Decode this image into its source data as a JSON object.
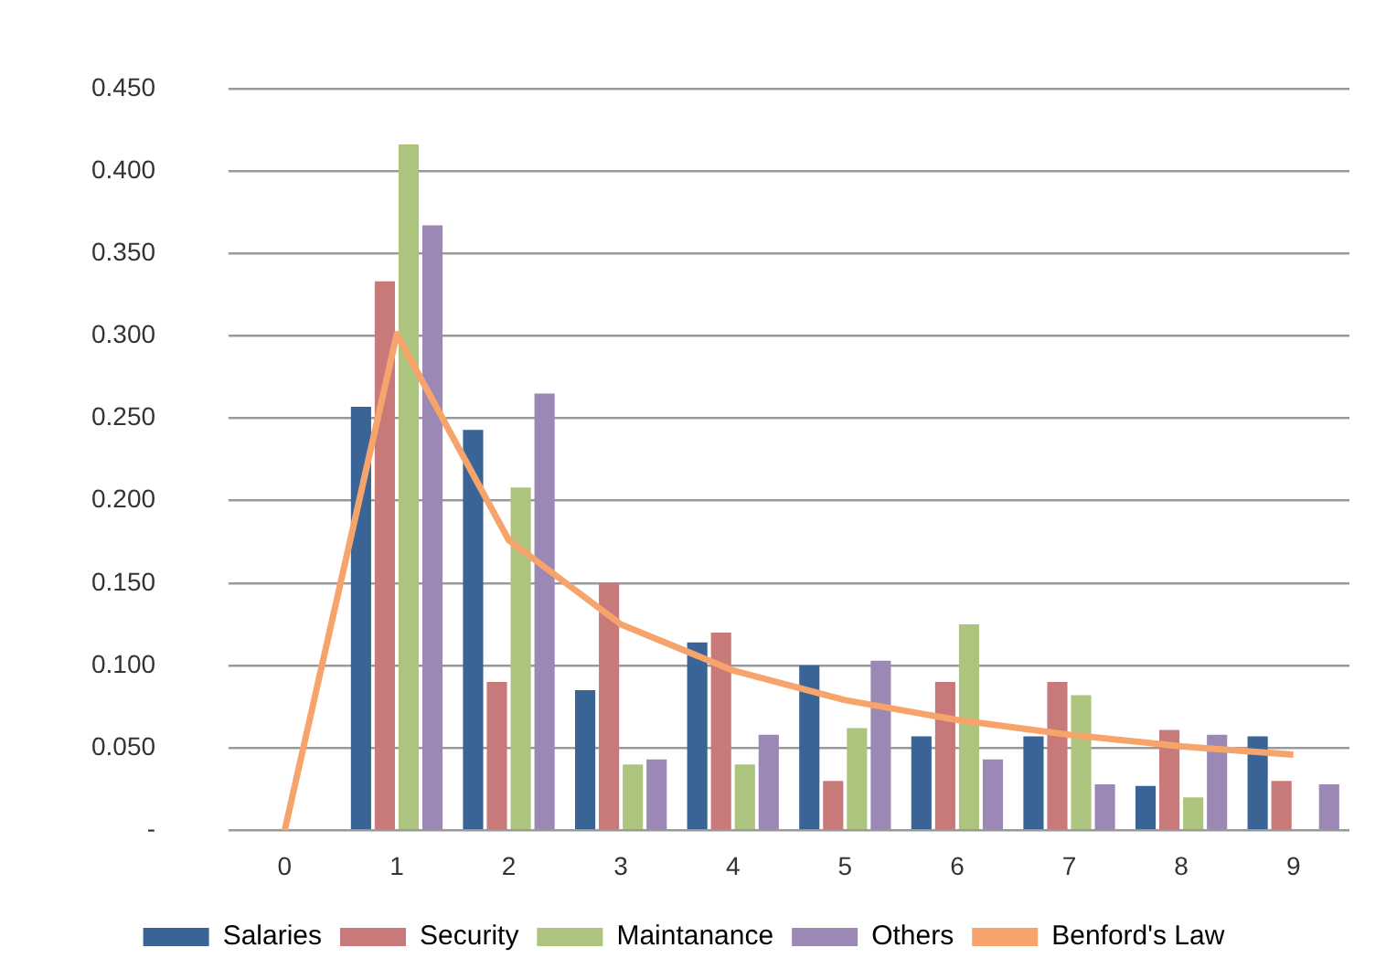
{
  "chart_data": {
    "type": "bar",
    "categories": [
      "0",
      "1",
      "2",
      "3",
      "4",
      "5",
      "6",
      "7",
      "8",
      "9"
    ],
    "series": [
      {
        "name": "Salaries",
        "color": "#3b6496",
        "values": [
          null,
          0.257,
          0.243,
          0.085,
          0.114,
          0.1,
          0.057,
          0.057,
          0.027,
          0.057
        ]
      },
      {
        "name": "Security",
        "color": "#c87a7a",
        "values": [
          null,
          0.333,
          0.09,
          0.15,
          0.12,
          0.03,
          0.09,
          0.09,
          0.061,
          0.03
        ]
      },
      {
        "name": "Maintanance",
        "color": "#adc47f",
        "values": [
          null,
          0.416,
          0.208,
          0.04,
          0.04,
          0.062,
          0.125,
          0.082,
          0.02,
          0
        ]
      },
      {
        "name": "Others",
        "color": "#9b88b4",
        "values": [
          null,
          0.367,
          0.265,
          0.043,
          0.058,
          0.103,
          0.043,
          0.028,
          0.058,
          0.028
        ]
      },
      {
        "name": "Benford's Law",
        "type": "line",
        "color": "#f6a46c",
        "values": [
          0,
          0.301,
          0.176,
          0.125,
          0.097,
          0.079,
          0.067,
          0.058,
          0.051,
          0.046
        ]
      }
    ],
    "ylim": [
      0,
      0.45
    ],
    "yticks": [
      {
        "value": 0,
        "label": "-"
      },
      {
        "value": 0.05,
        "label": "0.050"
      },
      {
        "value": 0.1,
        "label": "0.100"
      },
      {
        "value": 0.15,
        "label": "0.150"
      },
      {
        "value": 0.2,
        "label": "0.200"
      },
      {
        "value": 0.25,
        "label": "0.250"
      },
      {
        "value": 0.3,
        "label": "0.300"
      },
      {
        "value": 0.35,
        "label": "0.350"
      },
      {
        "value": 0.4,
        "label": "0.400"
      },
      {
        "value": 0.45,
        "label": "0.450"
      }
    ],
    "grid": "y",
    "legend": "bottom"
  }
}
